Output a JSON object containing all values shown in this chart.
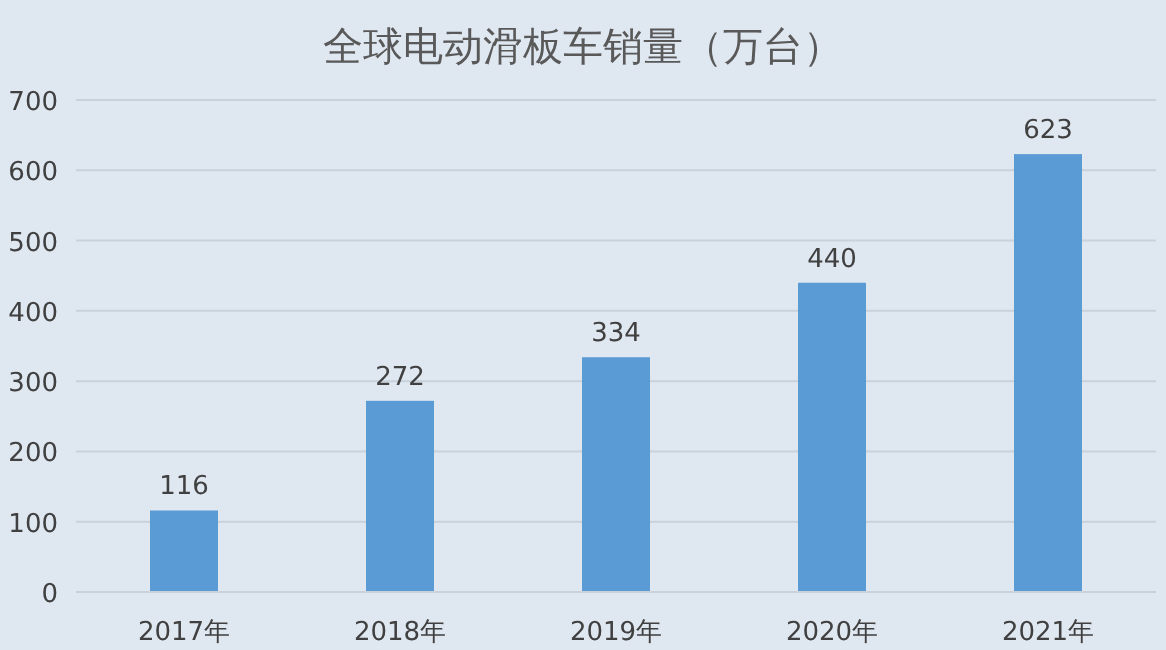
{
  "chart_data": {
    "type": "bar",
    "title": "全球电动滑板车销量（万台）",
    "categories": [
      "2017年",
      "2018年",
      "2019年",
      "2020年",
      "2021年"
    ],
    "values": [
      116,
      272,
      334,
      440,
      623
    ],
    "color": "#5b9bd5",
    "ylim": [
      0,
      700
    ],
    "yticks": [
      0,
      100,
      200,
      300,
      400,
      500,
      600,
      700
    ],
    "grid": "y",
    "data_labels": true
  }
}
